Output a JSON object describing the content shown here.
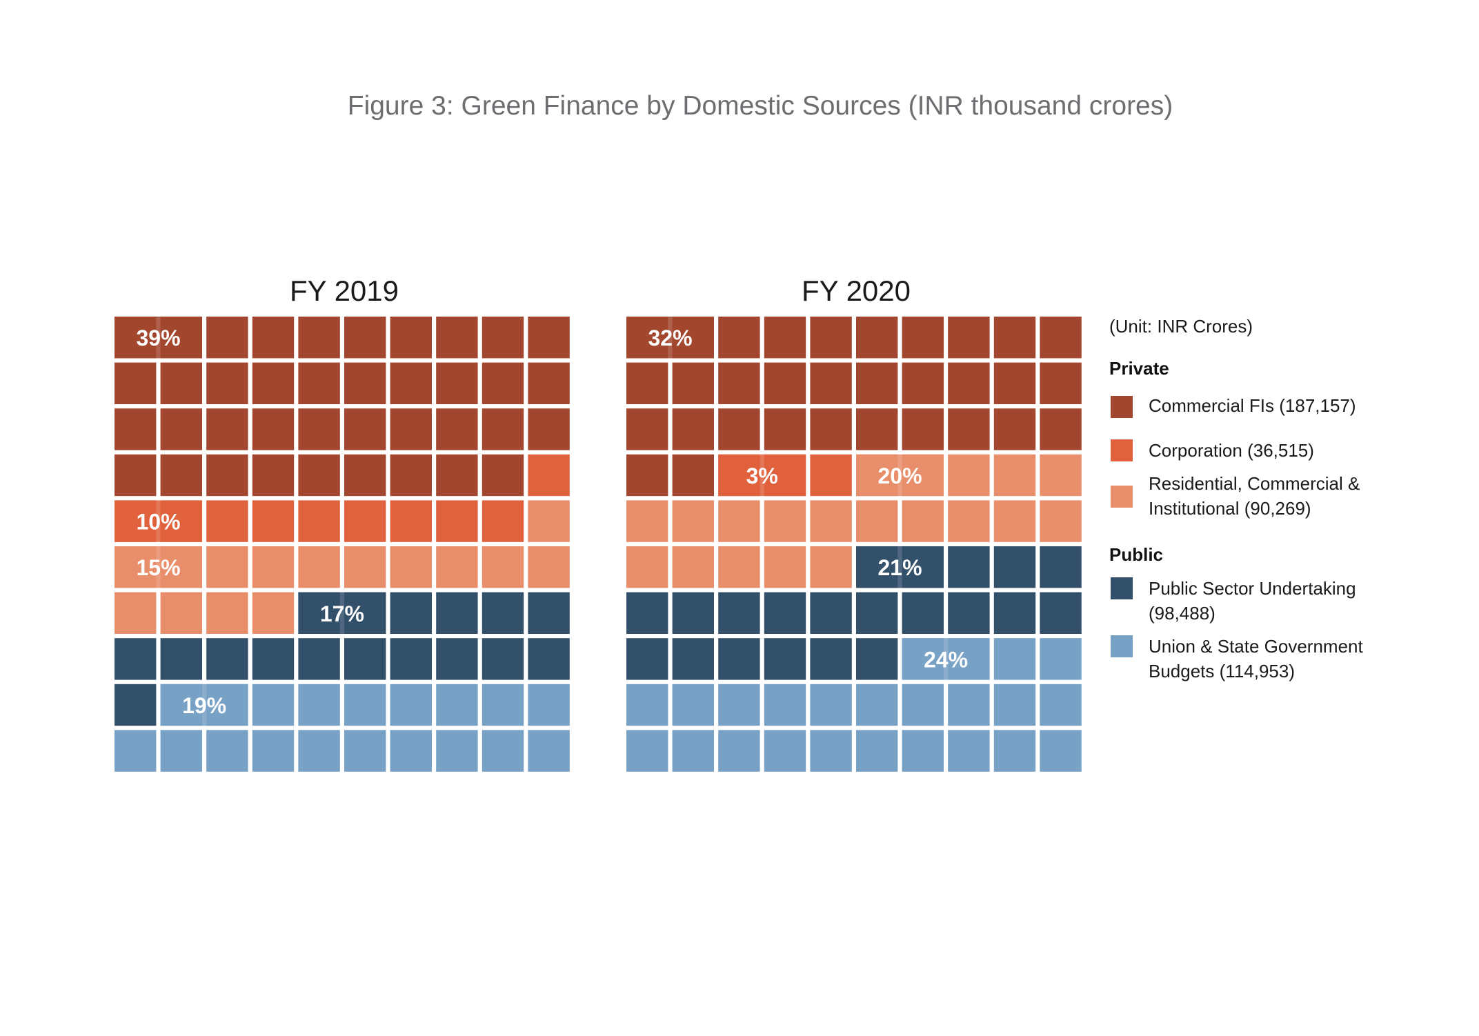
{
  "chart_data": {
    "type": "pie",
    "title": "Figure 3: Green Finance by Domestic Sources (INR thousand crores)",
    "unit_note": "(Unit: INR Crores)",
    "groups": [
      {
        "title": "Private",
        "members": [
          0,
          1,
          2
        ]
      },
      {
        "title": "Public",
        "members": [
          3,
          4
        ]
      }
    ],
    "categories": [
      {
        "lines": [
          "Commercial FIs (187,157)"
        ],
        "color": "#a2462f"
      },
      {
        "lines": [
          "Corporation (36,515)"
        ],
        "color": "#e0613d"
      },
      {
        "lines": [
          "Residential, Commercial &",
          "Institutional (90,269)"
        ],
        "color": "#e88e6a"
      },
      {
        "lines": [
          "Public Sector Undertaking",
          "(98,488)"
        ],
        "color": "#33506b"
      },
      {
        "lines": [
          "Union & State Government",
          "Budgets (114,953)"
        ],
        "color": "#78a1c6"
      }
    ],
    "series": [
      {
        "name": "FY 2019",
        "values": [
          39,
          10,
          15,
          17,
          19
        ],
        "labels": [
          "39%",
          "10%",
          "15%",
          "17%",
          "19%"
        ]
      },
      {
        "name": "FY 2020",
        "values": [
          32,
          3,
          20,
          21,
          24
        ],
        "labels": [
          "32%",
          "3%",
          "20%",
          "21%",
          "24%"
        ]
      }
    ]
  }
}
